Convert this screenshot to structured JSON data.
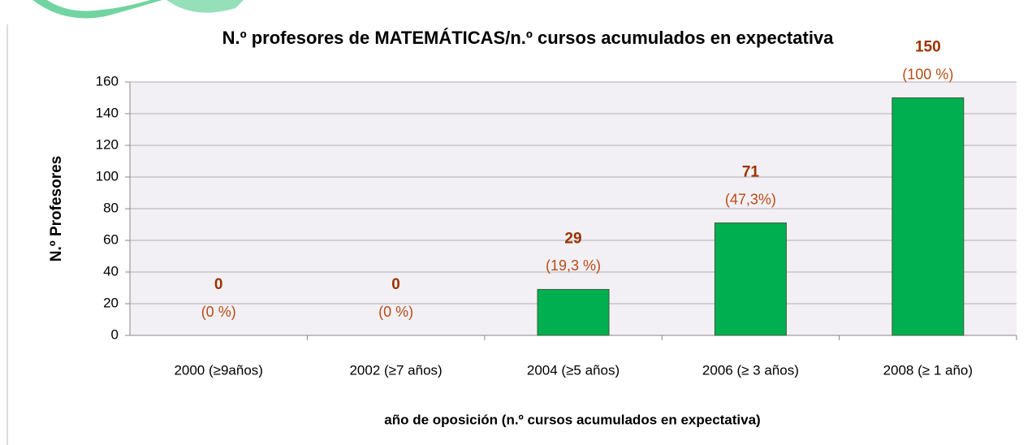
{
  "chart_data": {
    "type": "bar",
    "title": "N.º profesores de MATEMÁTICAS/n.º  cursos acumulados en expectativa",
    "ylabel": "N.º  Profesores",
    "xlabel": "año de oposición (n.º cursos acumulados en expectativa)",
    "categories": [
      "2000 (≥9años)",
      "2002 (≥7 años)",
      "2004 (≥5 años)",
      "2006 (≥ 3 años)",
      "2008 (≥ 1 año)"
    ],
    "values": [
      0,
      0,
      29,
      71,
      150
    ],
    "percent_labels": [
      "(0 %)",
      "(0 %)",
      "(19,3 %)",
      "(47,3%)",
      "(100 %)"
    ],
    "color": "#00b050",
    "ylim": [
      0,
      160
    ],
    "yticks": [
      0,
      20,
      40,
      60,
      80,
      100,
      120,
      140,
      160
    ],
    "grid": true
  }
}
